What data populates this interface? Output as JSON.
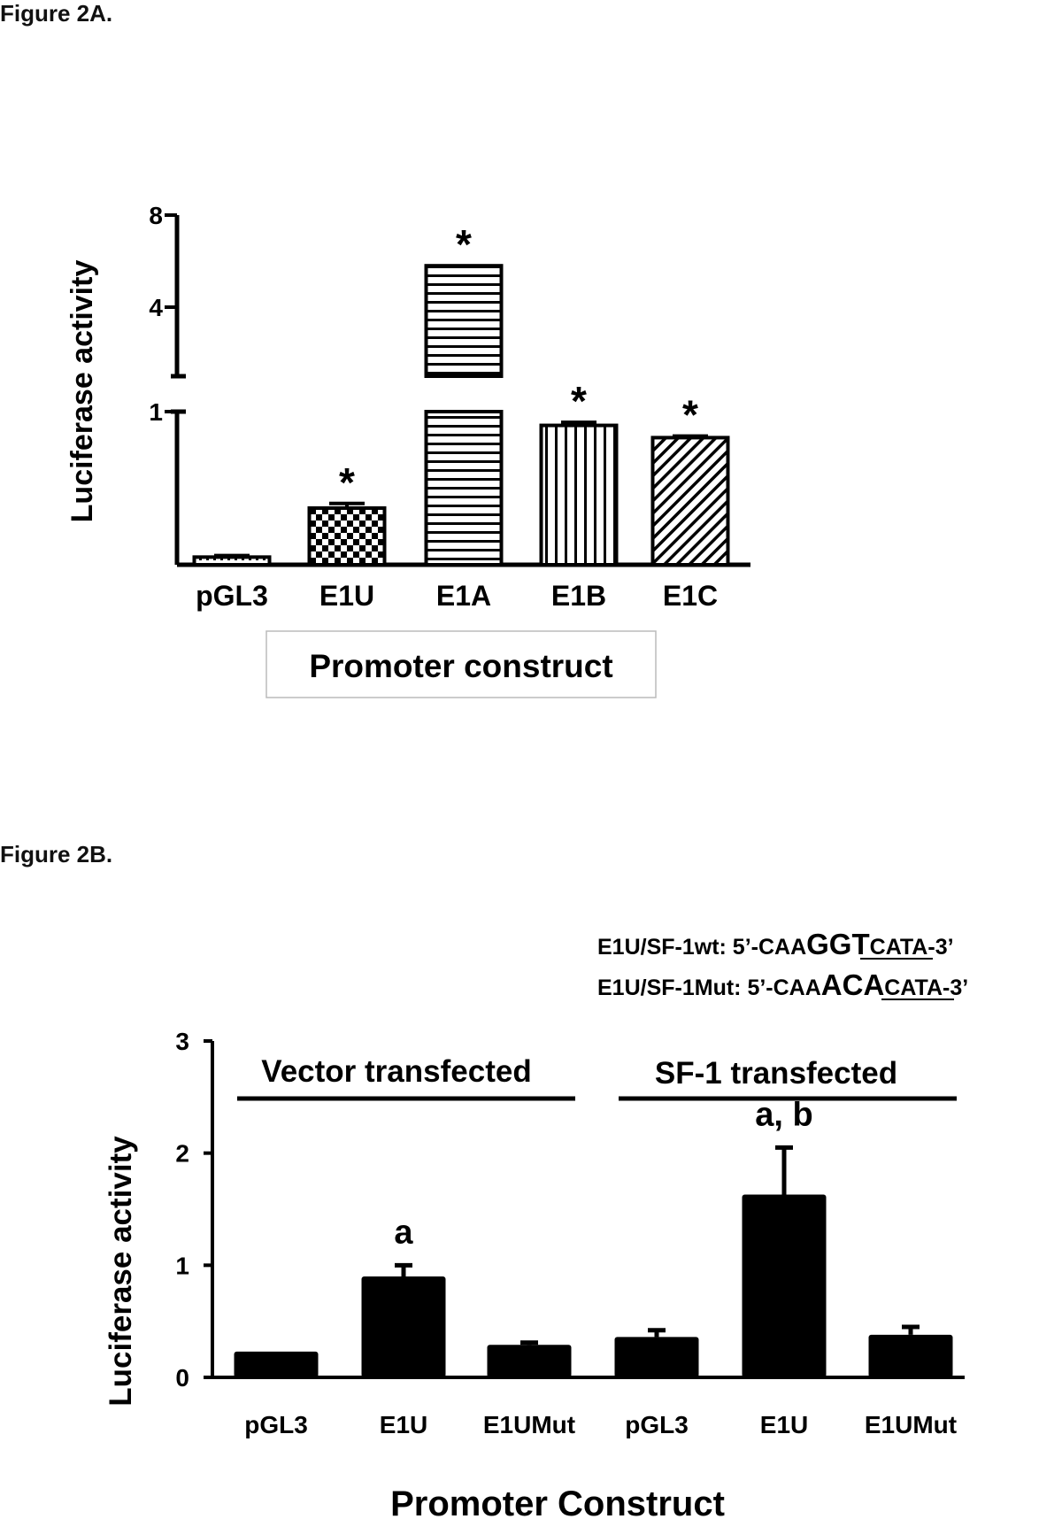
{
  "figure_a_label": "Figure 2A.",
  "figure_b_label": "Figure 2B.",
  "chart_data": [
    {
      "type": "bar",
      "ylabel": "Luciferase activity",
      "xlabel": "Promoter construct",
      "y_axis": "broken axis: 0–1 lower segment, 1–8 upper segment",
      "yticks": [
        "1",
        "4",
        "8"
      ],
      "categories": [
        "pGL3",
        "E1U",
        "E1A",
        "E1B",
        "E1C"
      ],
      "values": [
        0.05,
        0.37,
        5.8,
        0.91,
        0.83
      ],
      "errors": [
        0.01,
        0.03,
        0.0,
        0.02,
        0.01
      ],
      "patterns": [
        "dotted",
        "checker",
        "horizontal-lines",
        "vertical-lines",
        "diagonal-lines"
      ],
      "annotations": [
        "",
        "*",
        "*",
        "*",
        "*"
      ]
    },
    {
      "type": "bar",
      "ylabel": "Luciferase activity",
      "xlabel": "Promoter Construct",
      "ylim": [
        0,
        3
      ],
      "yticks": [
        "0",
        "1",
        "2",
        "3"
      ],
      "categories": [
        "pGL3",
        "E1U",
        "E1UMut",
        "pGL3",
        "E1U",
        "E1UMut"
      ],
      "values": [
        0.23,
        0.9,
        0.29,
        0.36,
        1.63,
        0.38
      ],
      "errors": [
        0.0,
        0.1,
        0.02,
        0.06,
        0.42,
        0.07
      ],
      "annotations": [
        "",
        "a",
        "",
        "",
        "a, b",
        ""
      ],
      "bar_color": "#000000",
      "groups": [
        {
          "label": "Vector transfected"
        },
        {
          "label": "SF-1 transfected"
        }
      ],
      "sequences": {
        "wt": {
          "prefix": "E1U/SF-1wt: 5’-CAA",
          "site": "GGT",
          "suffix": "CATA-3’"
        },
        "mut": {
          "prefix": "E1U/SF-1Mut: 5’-CAA",
          "site": "ACA",
          "suffix": "CATA-3’"
        }
      }
    }
  ]
}
